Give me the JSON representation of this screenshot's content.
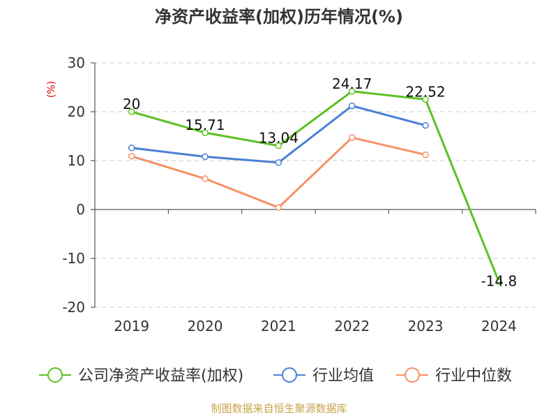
{
  "chart_data": {
    "type": "line",
    "title": "净资产收益率(加权)历年情况(%)",
    "ylabel": "(%)",
    "xlabel": "",
    "categories": [
      "2019",
      "2020",
      "2021",
      "2022",
      "2023",
      "2024"
    ],
    "ylim": [
      -20,
      30
    ],
    "yticks": [
      30,
      20,
      10,
      0,
      -10,
      -20
    ],
    "grid": true,
    "legend_position": "bottom",
    "series": [
      {
        "name": "公司净资产收益率(加权)",
        "color": "#5bc122",
        "values": [
          20,
          15.71,
          13.04,
          24.17,
          22.52,
          -14.8
        ],
        "labels": [
          "20",
          "15.71",
          "13.04",
          "24.17",
          "22.52",
          "-14.8"
        ]
      },
      {
        "name": "行业均值",
        "color": "#4a7fd6",
        "values": [
          12.6,
          10.8,
          9.6,
          21.2,
          17.2,
          null
        ]
      },
      {
        "name": "行业中位数",
        "color": "#f59063",
        "values": [
          10.9,
          6.3,
          0.4,
          14.7,
          11.2,
          null
        ]
      }
    ],
    "source": "制图数据来自恒生聚源数据库"
  }
}
